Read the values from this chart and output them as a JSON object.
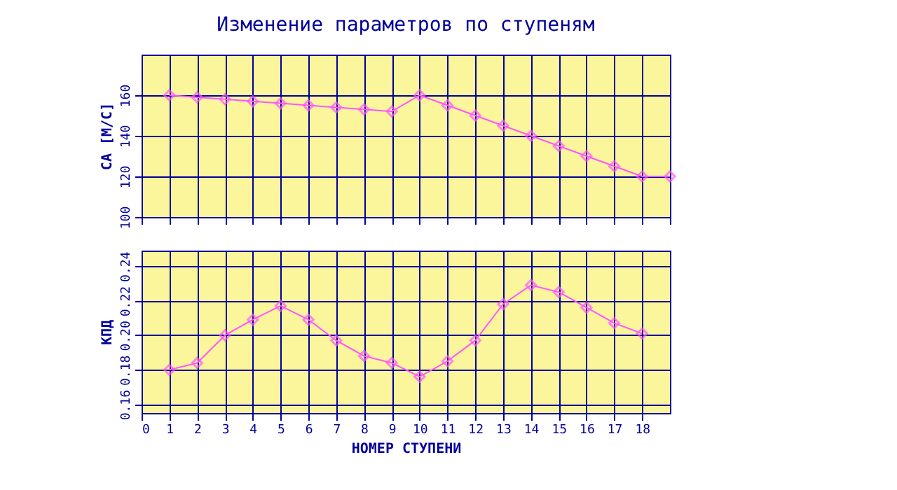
{
  "chart_data": [
    {
      "type": "line",
      "title": "Изменение параметров по ступеням",
      "ylabel": "СА [М/С]",
      "x": [
        1,
        2,
        3,
        4,
        5,
        6,
        7,
        8,
        9,
        10,
        11,
        12,
        13,
        14,
        15,
        16,
        17,
        18,
        19
      ],
      "series": [
        {
          "color": "#ff55ff",
          "values": [
            160,
            159,
            158,
            157,
            156,
            155,
            154,
            153,
            152,
            160,
            155,
            150,
            145,
            140,
            135,
            130,
            125,
            120,
            120
          ]
        }
      ],
      "xlim": [
        0,
        19
      ],
      "ylim": [
        100,
        180
      ],
      "yticks": [
        100,
        120,
        140,
        160
      ],
      "grid": true,
      "marker": "diamond",
      "tick_labels": "y"
    },
    {
      "type": "line",
      "xlabel": "НОМЕР СТУПЕНИ",
      "ylabel": "КПД",
      "x": [
        1,
        2,
        3,
        4,
        5,
        6,
        7,
        8,
        9,
        10,
        11,
        12,
        13,
        14,
        15,
        16,
        17,
        18
      ],
      "series": [
        {
          "color": "#ff55ff",
          "values": [
            0.18,
            0.184,
            0.2,
            0.209,
            0.217,
            0.209,
            0.197,
            0.188,
            0.184,
            0.176,
            0.185,
            0.197,
            0.218,
            0.229,
            0.225,
            0.216,
            0.207,
            0.201
          ]
        }
      ],
      "xlim": [
        0,
        19
      ],
      "xticks": [
        0,
        1,
        2,
        3,
        4,
        5,
        6,
        7,
        8,
        9,
        10,
        11,
        12,
        13,
        14,
        15,
        16,
        17,
        18
      ],
      "ylim": [
        0.155,
        0.249
      ],
      "yticks": [
        0.16,
        0.18,
        {
          "value": 0.2,
          "label": "0.20"
        },
        0.22,
        0.24
      ],
      "grid": true,
      "marker": "diamond"
    }
  ]
}
